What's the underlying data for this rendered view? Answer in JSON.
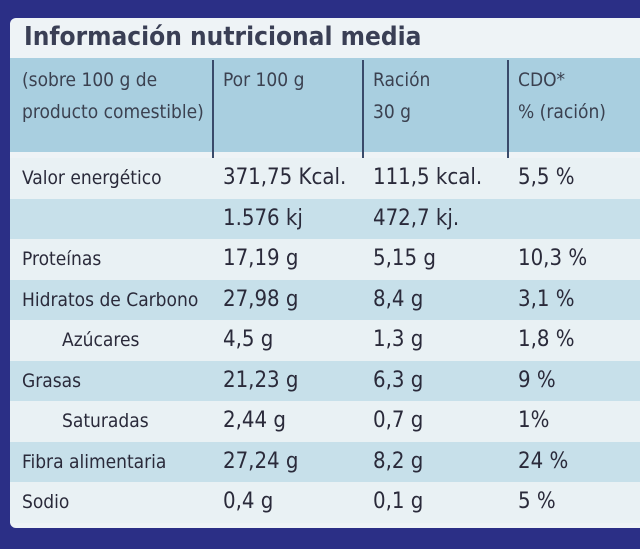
{
  "title": "Información nutricional media",
  "table": {
    "header": [
      [
        "(sobre 100 g de",
        "producto comestible)"
      ],
      [
        "Por 100 g"
      ],
      [
        "Ración",
        "30 g"
      ],
      [
        "CDO*",
        "% (ración)"
      ]
    ],
    "rows": [
      [
        "Valor energético",
        "371,75 Kcal.",
        "111,5 kcal.",
        "5,5 %"
      ],
      [
        null,
        "1.576 kj",
        "472,7 kj.",
        null
      ],
      [
        "Proteínas",
        "17,19 g",
        "5,15 g",
        "10,3 %"
      ],
      [
        "Hidratos de Carbono",
        "27,98 g",
        "8,4 g",
        "3,1 %"
      ],
      [
        "Azúcares",
        "4,5 g",
        "1,3 g",
        "1,8 %"
      ],
      [
        "Grasas",
        "21,23 g",
        "6,3 g",
        "9 %"
      ],
      [
        "Saturadas",
        "2,44 g",
        "0,7 g",
        "1%"
      ],
      [
        "Fibra alimentaria",
        "27,24 g",
        "8,2 g",
        "24 %"
      ],
      [
        "Sodio",
        "0,4 g",
        "0,1 g",
        "5 %"
      ]
    ]
  }
}
